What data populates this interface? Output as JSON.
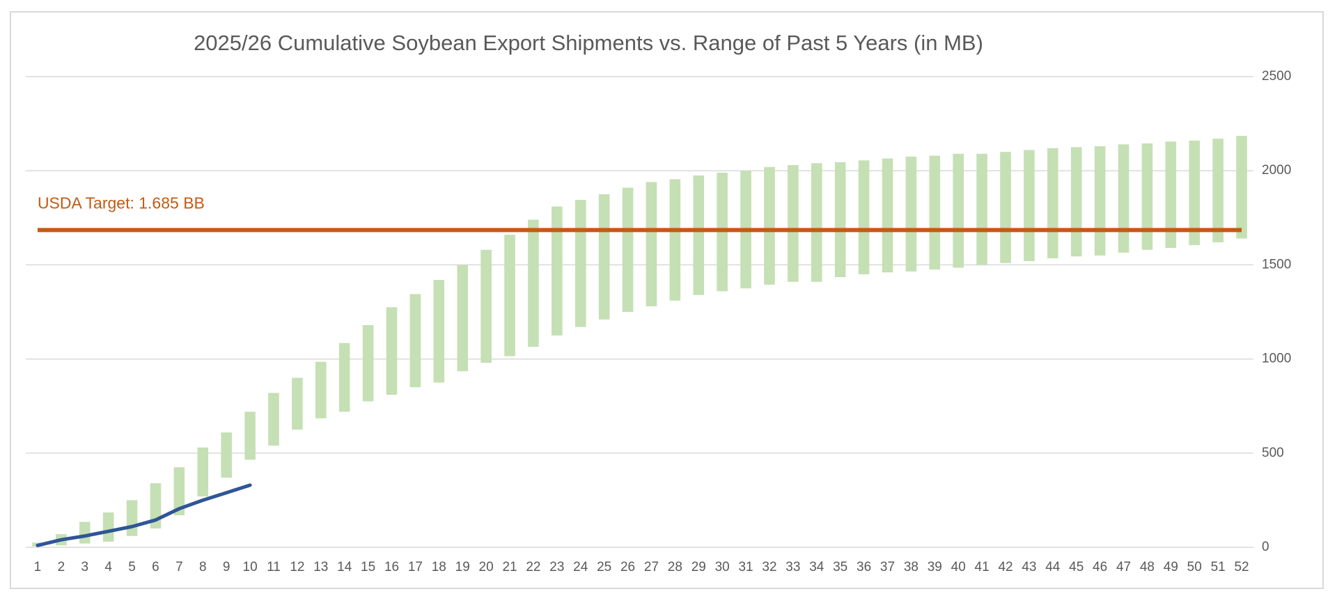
{
  "chart_data": {
    "type": "bar",
    "title": "2025/26 Cumulative Soybean Export Shipments vs. Range of Past 5 Years (in MB)",
    "categories": [
      1,
      2,
      3,
      4,
      5,
      6,
      7,
      8,
      9,
      10,
      11,
      12,
      13,
      14,
      15,
      16,
      17,
      18,
      19,
      20,
      21,
      22,
      23,
      24,
      25,
      26,
      27,
      28,
      29,
      30,
      31,
      32,
      33,
      34,
      35,
      36,
      37,
      38,
      39,
      40,
      41,
      42,
      43,
      44,
      45,
      46,
      47,
      48,
      49,
      50,
      51,
      52
    ],
    "ranges": {
      "color": "#c5e0b4",
      "values": [
        [
          5,
          25
        ],
        [
          10,
          70
        ],
        [
          20,
          135
        ],
        [
          30,
          185
        ],
        [
          60,
          250
        ],
        [
          100,
          340
        ],
        [
          170,
          425
        ],
        [
          270,
          530
        ],
        [
          370,
          610
        ],
        [
          465,
          720
        ],
        [
          540,
          820
        ],
        [
          625,
          900
        ],
        [
          685,
          985
        ],
        [
          720,
          1085
        ],
        [
          775,
          1180
        ],
        [
          810,
          1275
        ],
        [
          850,
          1345
        ],
        [
          875,
          1420
        ],
        [
          935,
          1500
        ],
        [
          980,
          1580
        ],
        [
          1015,
          1660
        ],
        [
          1065,
          1740
        ],
        [
          1125,
          1810
        ],
        [
          1170,
          1845
        ],
        [
          1210,
          1875
        ],
        [
          1250,
          1910
        ],
        [
          1280,
          1940
        ],
        [
          1310,
          1955
        ],
        [
          1340,
          1975
        ],
        [
          1360,
          1990
        ],
        [
          1375,
          2000
        ],
        [
          1395,
          2020
        ],
        [
          1410,
          2030
        ],
        [
          1410,
          2040
        ],
        [
          1435,
          2045
        ],
        [
          1450,
          2055
        ],
        [
          1460,
          2065
        ],
        [
          1465,
          2075
        ],
        [
          1475,
          2080
        ],
        [
          1485,
          2090
        ],
        [
          1500,
          2090
        ],
        [
          1510,
          2100
        ],
        [
          1520,
          2110
        ],
        [
          1535,
          2120
        ],
        [
          1545,
          2125
        ],
        [
          1550,
          2130
        ],
        [
          1565,
          2140
        ],
        [
          1580,
          2145
        ],
        [
          1590,
          2155
        ],
        [
          1605,
          2160
        ],
        [
          1620,
          2170
        ],
        [
          1640,
          2185
        ]
      ]
    },
    "series": [
      {
        "color": "#2f5597",
        "values": [
          10,
          40,
          60,
          85,
          110,
          145,
          205,
          250,
          290,
          330,
          null,
          null,
          null,
          null,
          null,
          null,
          null,
          null,
          null,
          null,
          null,
          null,
          null,
          null,
          null,
          null,
          null,
          null,
          null,
          null,
          null,
          null,
          null,
          null,
          null,
          null,
          null,
          null,
          null,
          null,
          null,
          null,
          null,
          null,
          null,
          null,
          null,
          null,
          null,
          null,
          null,
          null
        ]
      }
    ],
    "reference_line": {
      "value": 1685,
      "label": "USDA Target: 1.685 BB",
      "color": "#c55a11"
    },
    "ylim": [
      0,
      2500
    ],
    "yticks": [
      0,
      500,
      1000,
      1500,
      2000,
      2500
    ],
    "grid": true
  }
}
